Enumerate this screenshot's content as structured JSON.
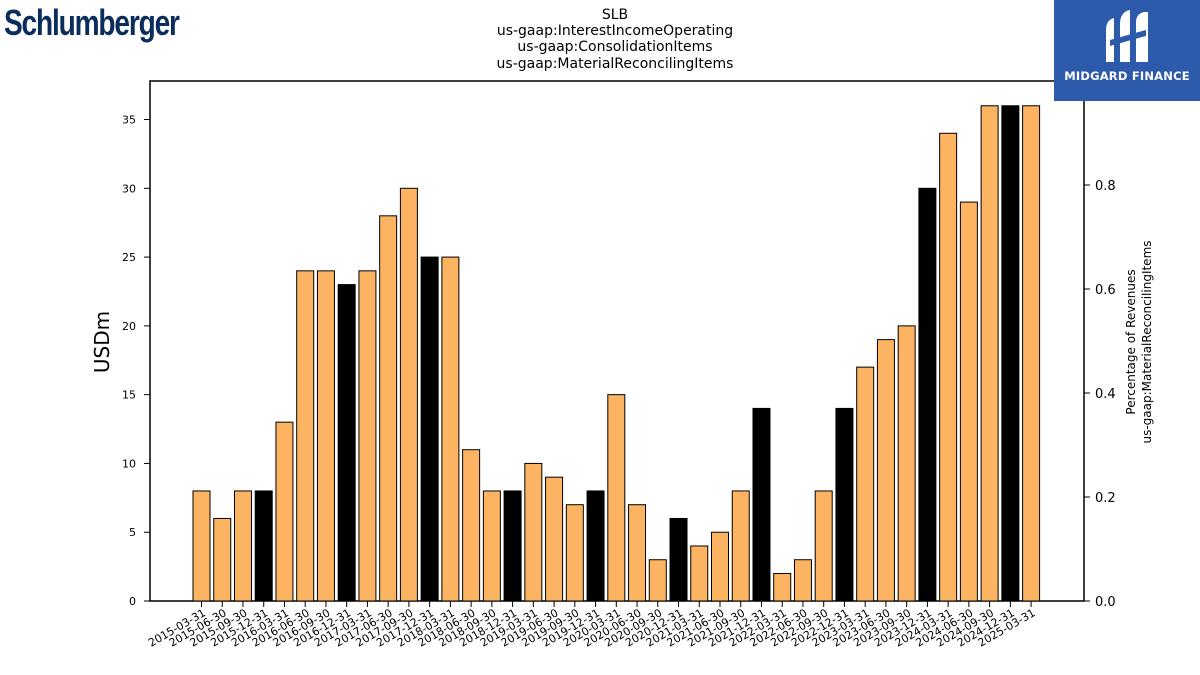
{
  "header": {
    "title_lines": [
      "SLB",
      "us-gaap:InterestIncomeOperating",
      "us-gaap:ConsolidationItems",
      "us-gaap:MaterialReconcilingItems"
    ]
  },
  "logos": {
    "left_text": "Schlumberger",
    "left_color": "#0b2d5b",
    "right_text": "MIDGARD FINANCE",
    "right_bg": "#2e5aac"
  },
  "colors": {
    "bar_default": "#fdb462",
    "bar_highlight": "#000000"
  },
  "chart_data": {
    "type": "bar",
    "categories": [
      "2015-03-31",
      "2015-06-30",
      "2015-09-30",
      "2015-12-31",
      "2016-03-31",
      "2016-06-30",
      "2016-09-30",
      "2016-12-31",
      "2017-03-31",
      "2017-06-30",
      "2017-09-30",
      "2017-12-31",
      "2018-03-31",
      "2018-06-30",
      "2018-09-30",
      "2018-12-31",
      "2019-03-31",
      "2019-06-30",
      "2019-09-30",
      "2019-12-31",
      "2020-03-31",
      "2020-06-30",
      "2020-09-30",
      "2020-12-31",
      "2021-03-31",
      "2021-06-30",
      "2021-09-30",
      "2021-12-31",
      "2022-03-31",
      "2022-06-30",
      "2022-09-30",
      "2022-12-31",
      "2023-03-31",
      "2023-06-30",
      "2023-09-30",
      "2023-12-31",
      "2024-03-31",
      "2024-06-30",
      "2024-09-30",
      "2024-12-31",
      "2025-03-31"
    ],
    "values": [
      8,
      6,
      8,
      8,
      13,
      24,
      24,
      23,
      24,
      28,
      30,
      25,
      25,
      11,
      8,
      8,
      10,
      9,
      7,
      8,
      15,
      7,
      3,
      6,
      4,
      5,
      8,
      14,
      2,
      3,
      8,
      14,
      17,
      19,
      20,
      30,
      34,
      29,
      36,
      36,
      36
    ],
    "highlighted": [
      false,
      false,
      false,
      true,
      false,
      false,
      false,
      true,
      false,
      false,
      false,
      true,
      false,
      false,
      false,
      true,
      false,
      false,
      false,
      true,
      false,
      false,
      false,
      true,
      false,
      false,
      false,
      true,
      false,
      false,
      false,
      true,
      false,
      false,
      false,
      true,
      false,
      false,
      false,
      true,
      false
    ],
    "ylabel": "USDm",
    "ylabel_right": [
      "Percentage of Revenues",
      "us-gaap:MaterialReconcilingItems"
    ],
    "ylim": [
      0,
      37.8
    ],
    "yticks": [
      "0",
      "5",
      "10",
      "15",
      "20",
      "25",
      "30",
      "35"
    ],
    "ylim_right": [
      0,
      1.0
    ],
    "yticks_right": [
      "0.0",
      "0.2",
      "0.4",
      "0.6",
      "0.8"
    ],
    "grid": false,
    "legend": "none"
  }
}
